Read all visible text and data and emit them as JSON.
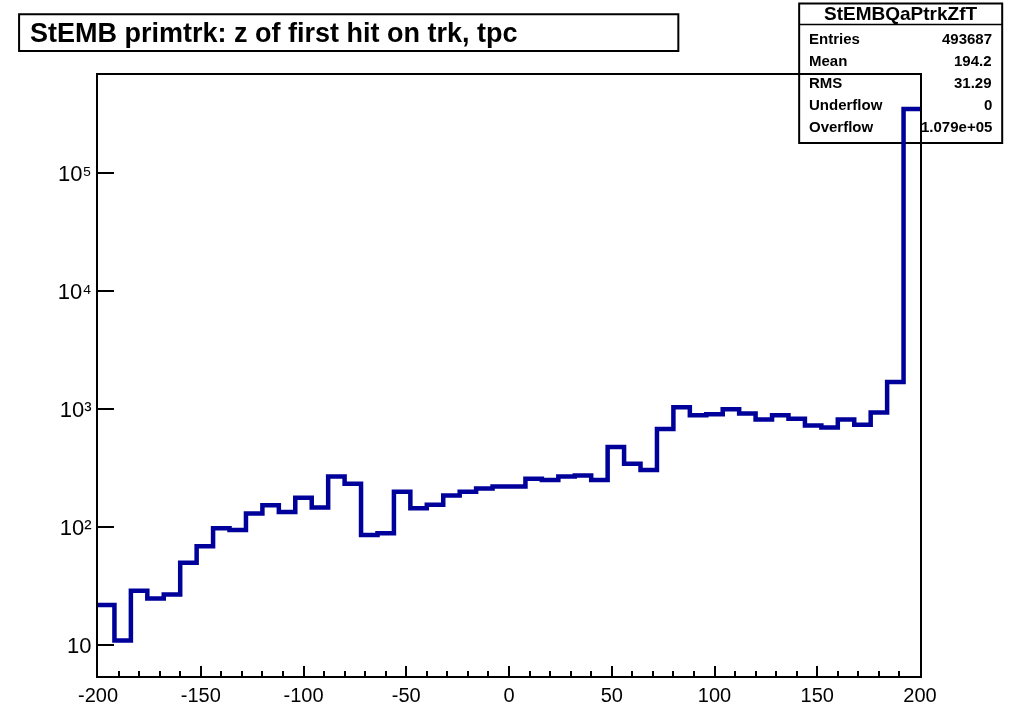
{
  "chart_data": {
    "type": "histogram",
    "title": "StEMB primtrk: z of first hit on trk, tpc",
    "bins": [
      -200,
      -192,
      -184,
      -176,
      -168,
      -160,
      -152,
      -144,
      -136,
      -128,
      -120,
      -112,
      -104,
      -96,
      -88,
      -80,
      -72,
      -64,
      -56,
      -48,
      -40,
      -32,
      -24,
      -16,
      -8,
      0,
      8,
      16,
      24,
      32,
      40,
      48,
      56,
      64,
      72,
      80,
      88,
      96,
      104,
      112,
      120,
      128,
      136,
      144,
      152,
      160,
      168,
      176,
      184,
      192,
      200
    ],
    "values": [
      22,
      11,
      29,
      25,
      27,
      50,
      69,
      98,
      95,
      131,
      154,
      135,
      178,
      147,
      270,
      234,
      86,
      89,
      200,
      145,
      155,
      186,
      200,
      213,
      222,
      222,
      258,
      252,
      270,
      275,
      252,
      480,
      346,
      306,
      680,
      1040,
      890,
      910,
      1000,
      920,
      820,
      890,
      830,
      730,
      700,
      820,
      740,
      940,
      1700,
      350000
    ],
    "color": "#00009a",
    "log": "y",
    "grid": false,
    "xlim": [
      -200,
      200
    ],
    "xticks": [
      -200,
      -150,
      -100,
      -50,
      0,
      50,
      100,
      150,
      200
    ],
    "ylim": [
      5.5,
      680000
    ],
    "yticks": [
      10,
      {
        "value": 100,
        "label": "10²"
      },
      {
        "value": 1000,
        "label": "10³"
      },
      {
        "value": 10000,
        "label": "10⁴"
      },
      {
        "value": 100000,
        "label": "10⁵"
      }
    ],
    "annotations": [
      "StEMBQaPtrkZfT",
      "Entries",
      "493687",
      "Mean",
      "194.2",
      "RMS",
      "31.29",
      "Underflow",
      "0",
      "Overflow",
      "1.079e+05"
    ]
  }
}
